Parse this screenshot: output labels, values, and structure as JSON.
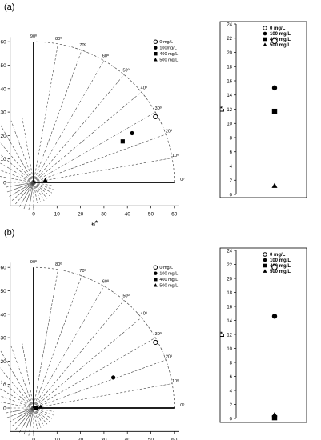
{
  "panels": [
    {
      "label": "(a)",
      "chart_data": [
        {
          "type": "scatter",
          "kind": "polar-hue",
          "xlabel": "a*",
          "ylabel": "b*",
          "xlim": [
            -10,
            62
          ],
          "ylim": [
            -10,
            62
          ],
          "xticks": [
            0,
            10,
            20,
            30,
            40,
            50,
            60
          ],
          "yticks": [
            0,
            10,
            20,
            30,
            40,
            50,
            60
          ],
          "angle_labels": [
            "0º",
            "10º",
            "20º",
            "30º",
            "40º",
            "50º",
            "60º",
            "70º",
            "80º",
            "90º"
          ],
          "legend": [
            "0 mg/L",
            "100mg/L",
            "400 mg/L",
            "500 mg/L"
          ],
          "legend_position": "top-right",
          "series": [
            {
              "name": "0 mg/L",
              "marker": "open-circle",
              "x": [
                52
              ],
              "y": [
                28
              ]
            },
            {
              "name": "100mg/L",
              "marker": "filled-circle",
              "x": [
                42
              ],
              "y": [
                21
              ]
            },
            {
              "name": "400 mg/L",
              "marker": "filled-square",
              "x": [
                38
              ],
              "y": [
                17.5
              ]
            },
            {
              "name": "500 mg/L",
              "marker": "filled-triangle",
              "x": [
                5
              ],
              "y": [
                1
              ]
            }
          ]
        },
        {
          "type": "scatter",
          "kind": "lightness",
          "ylabel": "L*",
          "ylim": [
            0,
            24
          ],
          "yticks": [
            0,
            2,
            4,
            6,
            8,
            10,
            12,
            14,
            16,
            18,
            20,
            22,
            24
          ],
          "legend": [
            "0 mg/L",
            "100 mg/L",
            "400 mg/L",
            "500 mg/L"
          ],
          "legend_position": "top-right",
          "series": [
            {
              "name": "0 mg/L",
              "marker": "open-circle",
              "y": [
                21.6
              ]
            },
            {
              "name": "100 mg/L",
              "marker": "filled-circle",
              "y": [
                15
              ]
            },
            {
              "name": "400 mg/L",
              "marker": "filled-square",
              "y": [
                11.7
              ]
            },
            {
              "name": "500 mg/L",
              "marker": "filled-triangle",
              "y": [
                1.2
              ]
            }
          ]
        }
      ]
    },
    {
      "label": "(b)",
      "chart_data": [
        {
          "type": "scatter",
          "kind": "polar-hue",
          "xlabel": "a*",
          "ylabel": "b*",
          "xlim": [
            -10,
            62
          ],
          "ylim": [
            -10,
            62
          ],
          "xticks": [
            0,
            10,
            20,
            30,
            40,
            50,
            60
          ],
          "yticks": [
            0,
            10,
            20,
            30,
            40,
            50,
            60
          ],
          "angle_labels": [
            "0º",
            "10º",
            "20º",
            "30º",
            "40º",
            "50º",
            "60º",
            "70º",
            "80º",
            "90º"
          ],
          "legend": [
            "0 mg/L",
            "100 mg/L",
            "400 mg/L",
            "500 mg/L"
          ],
          "legend_position": "top-right",
          "series": [
            {
              "name": "0 mg/L",
              "marker": "open-circle",
              "x": [
                52
              ],
              "y": [
                28
              ]
            },
            {
              "name": "100 mg/L",
              "marker": "filled-circle",
              "x": [
                34
              ],
              "y": [
                13
              ]
            },
            {
              "name": "400 mg/L",
              "marker": "filled-square",
              "x": [
                1
              ],
              "y": [
                0
              ]
            },
            {
              "name": "500 mg/L",
              "marker": "filled-triangle",
              "x": [
                3
              ],
              "y": [
                0.5
              ]
            }
          ]
        },
        {
          "type": "scatter",
          "kind": "lightness",
          "ylabel": "L*",
          "ylim": [
            0,
            24
          ],
          "yticks": [
            0,
            2,
            4,
            6,
            8,
            10,
            12,
            14,
            16,
            18,
            20,
            22,
            24
          ],
          "legend": [
            "0 mg/L",
            "100 mg/L",
            "400 mg/L",
            "500 mg/L"
          ],
          "legend_position": "top-right",
          "series": [
            {
              "name": "0 mg/L",
              "marker": "open-circle",
              "y": [
                21.6
              ]
            },
            {
              "name": "100 mg/L",
              "marker": "filled-circle",
              "y": [
                14.6
              ]
            },
            {
              "name": "400 mg/L",
              "marker": "filled-square",
              "y": [
                0.1
              ]
            },
            {
              "name": "500 mg/L",
              "marker": "filled-triangle",
              "y": [
                0.5
              ]
            }
          ]
        }
      ]
    }
  ]
}
